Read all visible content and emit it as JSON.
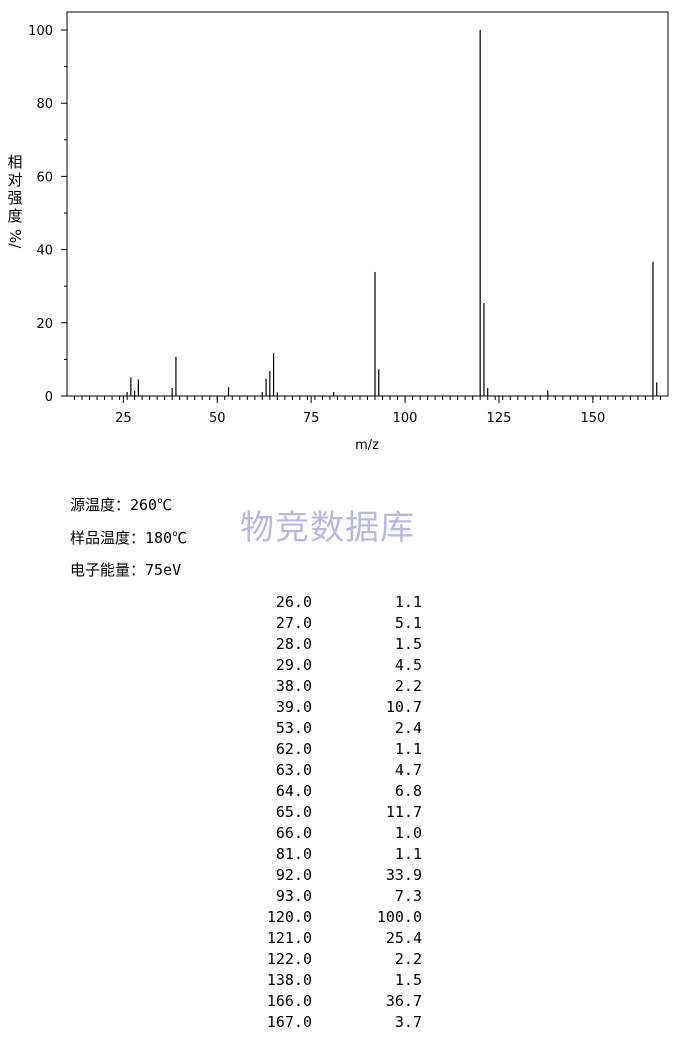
{
  "chart_data": {
    "type": "bar",
    "xlabel": "m/z",
    "ylabel_chars": [
      "相",
      "对",
      "强",
      "度"
    ],
    "ylabel_unit": "%/",
    "xlim": [
      10,
      170
    ],
    "ylim": [
      0,
      100
    ],
    "xticks": [
      25,
      50,
      75,
      100,
      125,
      150
    ],
    "yticks": [
      0,
      20,
      40,
      60,
      80,
      100
    ],
    "peaks": [
      {
        "mz": 26.0,
        "intensity": 1.1
      },
      {
        "mz": 27.0,
        "intensity": 5.1
      },
      {
        "mz": 28.0,
        "intensity": 1.5
      },
      {
        "mz": 29.0,
        "intensity": 4.5
      },
      {
        "mz": 38.0,
        "intensity": 2.2
      },
      {
        "mz": 39.0,
        "intensity": 10.7
      },
      {
        "mz": 53.0,
        "intensity": 2.4
      },
      {
        "mz": 62.0,
        "intensity": 1.1
      },
      {
        "mz": 63.0,
        "intensity": 4.7
      },
      {
        "mz": 64.0,
        "intensity": 6.8
      },
      {
        "mz": 65.0,
        "intensity": 11.7
      },
      {
        "mz": 66.0,
        "intensity": 1.0
      },
      {
        "mz": 81.0,
        "intensity": 1.1
      },
      {
        "mz": 92.0,
        "intensity": 33.9
      },
      {
        "mz": 93.0,
        "intensity": 7.3
      },
      {
        "mz": 120.0,
        "intensity": 100.0
      },
      {
        "mz": 121.0,
        "intensity": 25.4
      },
      {
        "mz": 122.0,
        "intensity": 2.2
      },
      {
        "mz": 138.0,
        "intensity": 1.5
      },
      {
        "mz": 166.0,
        "intensity": 36.7
      },
      {
        "mz": 167.0,
        "intensity": 3.7
      }
    ]
  },
  "meta": {
    "source_temp": "源温度：260℃",
    "sample_temp": "样品温度：180℃",
    "electron_energy": "电子能量：75eV"
  },
  "watermark": "物竞数据库",
  "peak_table": [
    {
      "mz": "26.0",
      "int": "1.1"
    },
    {
      "mz": "27.0",
      "int": "5.1"
    },
    {
      "mz": "28.0",
      "int": "1.5"
    },
    {
      "mz": "29.0",
      "int": "4.5"
    },
    {
      "mz": "38.0",
      "int": "2.2"
    },
    {
      "mz": "39.0",
      "int": "10.7"
    },
    {
      "mz": "53.0",
      "int": "2.4"
    },
    {
      "mz": "62.0",
      "int": "1.1"
    },
    {
      "mz": "63.0",
      "int": "4.7"
    },
    {
      "mz": "64.0",
      "int": "6.8"
    },
    {
      "mz": "65.0",
      "int": "11.7"
    },
    {
      "mz": "66.0",
      "int": "1.0"
    },
    {
      "mz": "81.0",
      "int": "1.1"
    },
    {
      "mz": "92.0",
      "int": "33.9"
    },
    {
      "mz": "93.0",
      "int": "7.3"
    },
    {
      "mz": "120.0",
      "int": "100.0"
    },
    {
      "mz": "121.0",
      "int": "25.4"
    },
    {
      "mz": "122.0",
      "int": "2.2"
    },
    {
      "mz": "138.0",
      "int": "1.5"
    },
    {
      "mz": "166.0",
      "int": "36.7"
    },
    {
      "mz": "167.0",
      "int": "3.7"
    }
  ]
}
